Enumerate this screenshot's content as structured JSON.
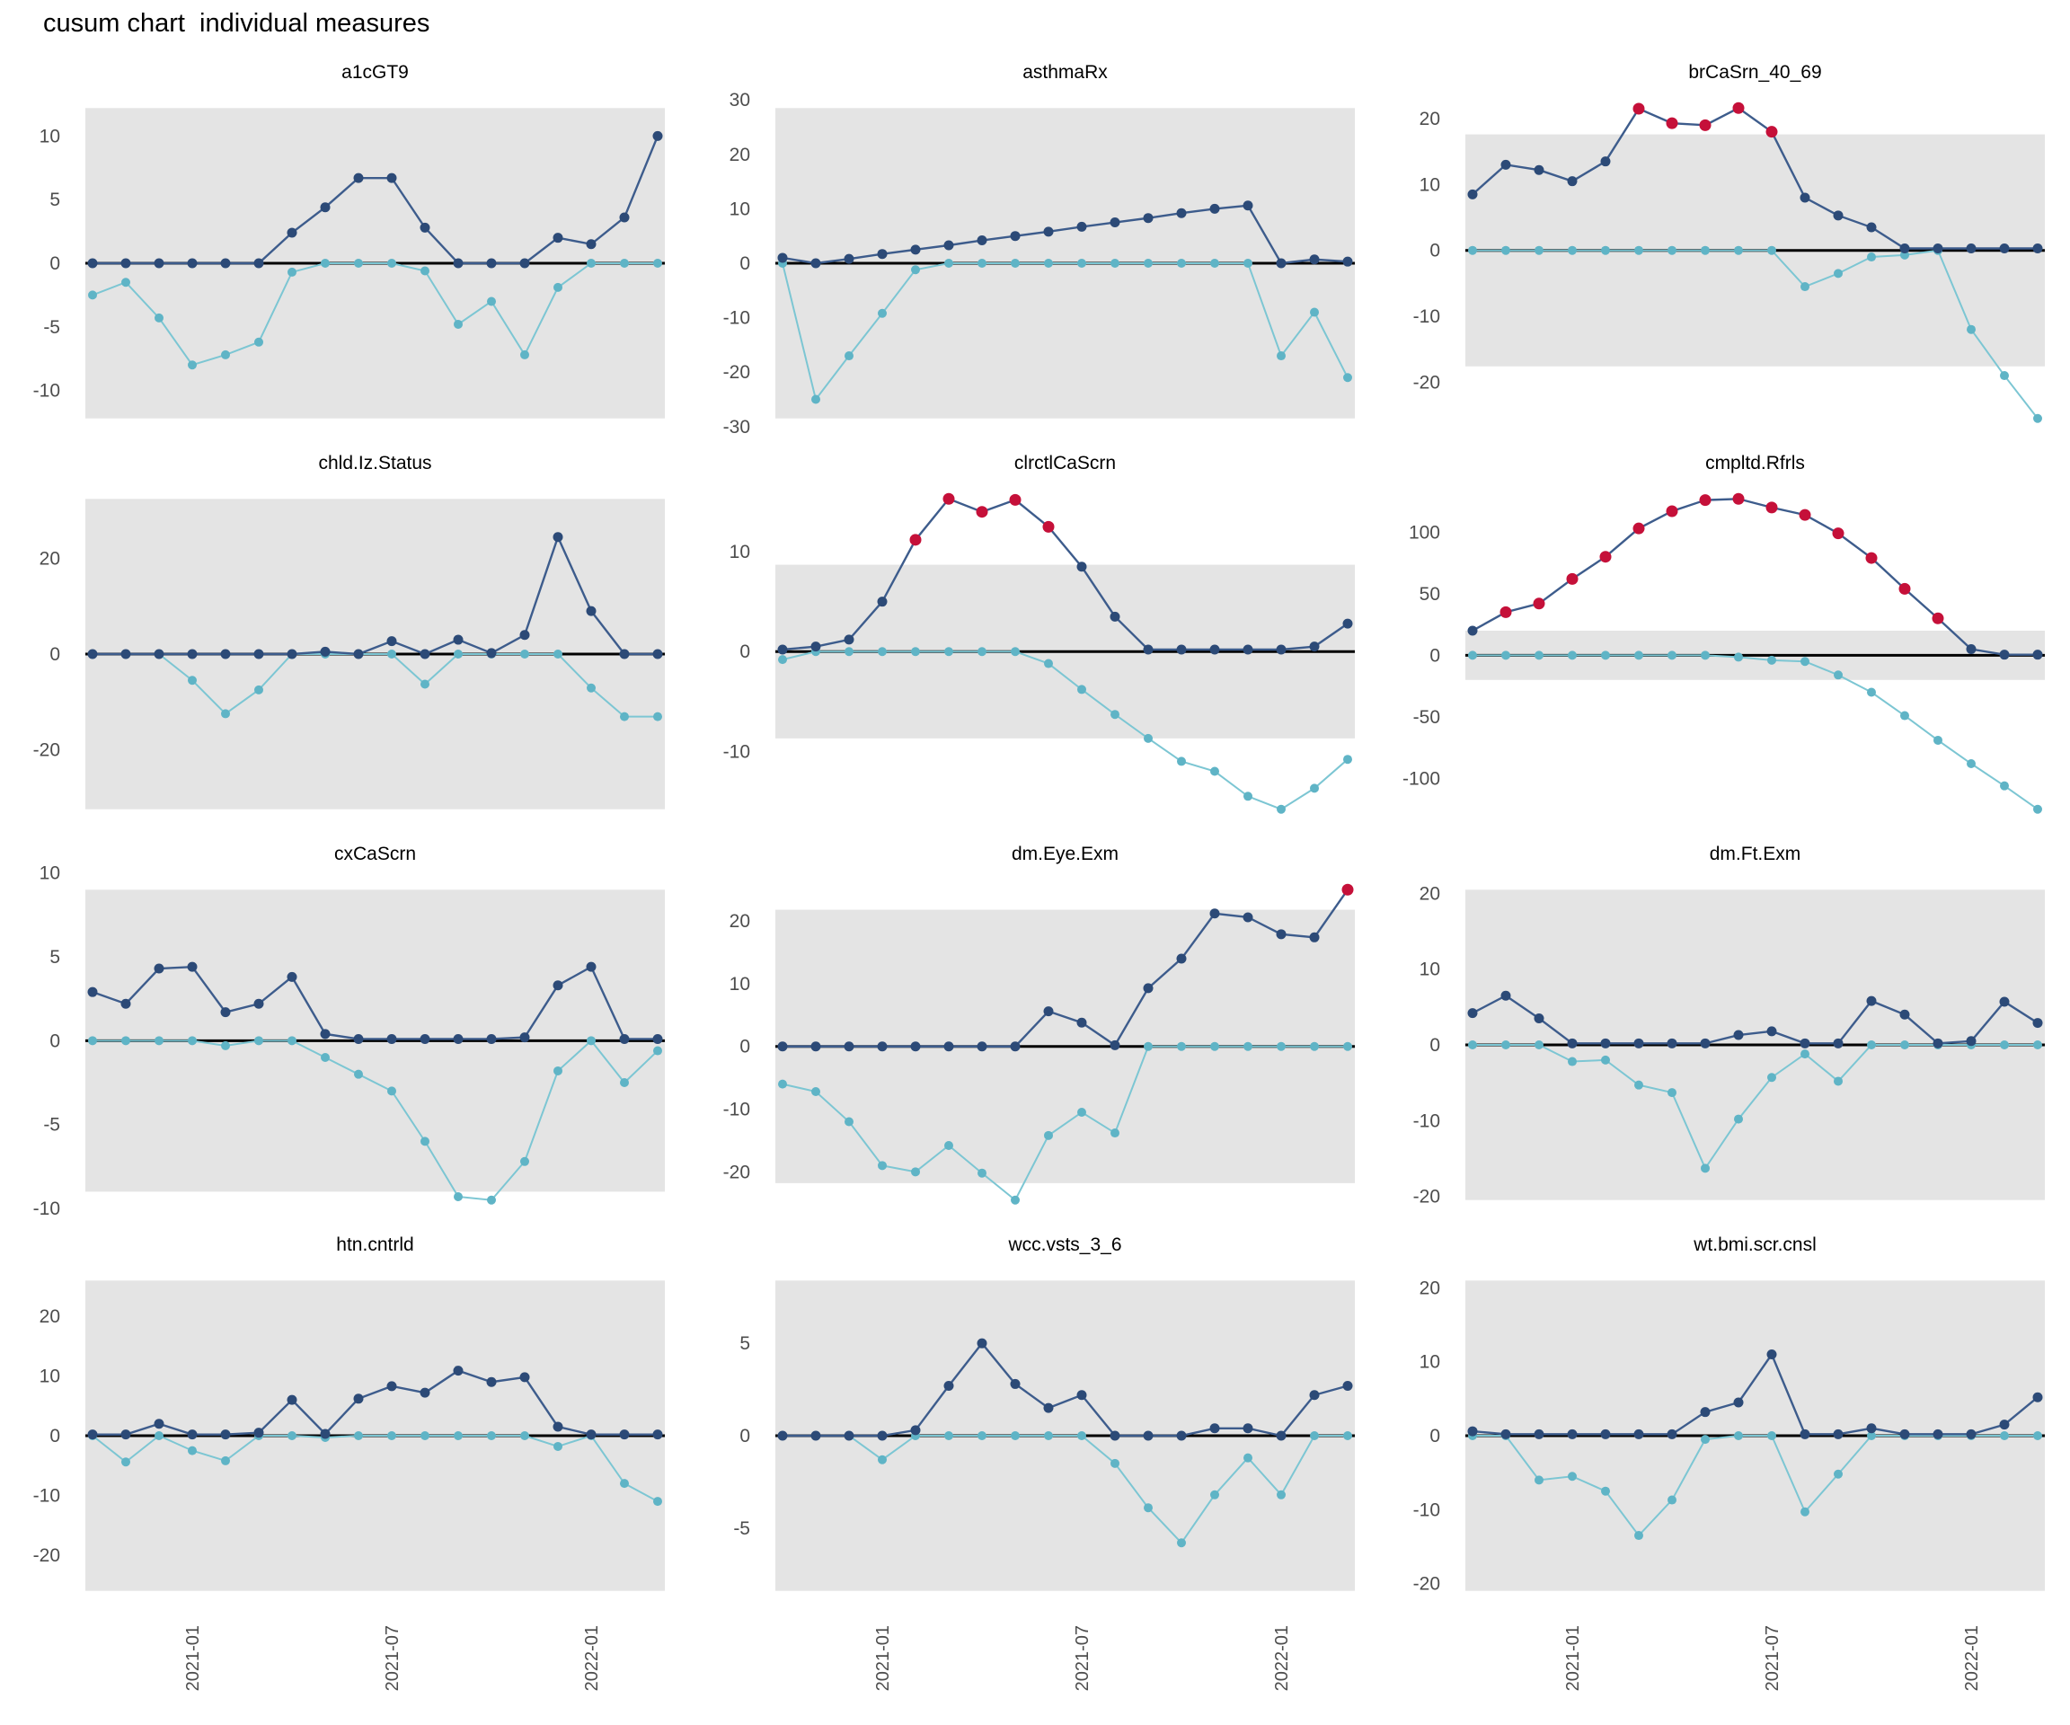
{
  "title": "cusum chart  individual measures",
  "colors": {
    "upper_point": "#2c4a77",
    "upper_line": "#3d5c8c",
    "lower_point": "#5fb4c6",
    "lower_line": "#7cc6d3",
    "signal_point": "#c51039",
    "band_fill": "#e4e4e4",
    "baseline": "#000000",
    "tick_label": "#4d4d4d",
    "panel_title": "#000000"
  },
  "chart_data": {
    "type": "line",
    "title": "cusum chart  individual measures",
    "subtitle": "",
    "grid": "off",
    "legend": "none",
    "x": {
      "n_points": 18,
      "tick_positions": [
        3,
        9,
        15
      ],
      "tick_labels": [
        "2021-01",
        "2021-07",
        "2022-01"
      ]
    },
    "panels": [
      {
        "title": "a1cGT9",
        "y_ticks": [
          10,
          5,
          0,
          -5,
          -10
        ],
        "control_limit": 12.2,
        "signals": [],
        "series": [
          {
            "name": "cusum-upper",
            "values": [
              0,
              0,
              0,
              0,
              0,
              0,
              2.4,
              4.4,
              6.7,
              6.7,
              2.8,
              0,
              0,
              0,
              2,
              1.5,
              3.6,
              10
            ]
          },
          {
            "name": "cusum-lower",
            "values": [
              -2.5,
              -1.5,
              -4.3,
              -8,
              -7.2,
              -6.2,
              -0.7,
              0,
              0,
              0,
              -0.6,
              -4.8,
              -3,
              -7.2,
              -1.9,
              0,
              0,
              0
            ]
          }
        ]
      },
      {
        "title": "asthmaRx",
        "y_ticks": [
          30,
          20,
          10,
          0,
          -10,
          -20,
          -30
        ],
        "control_limit": 28.5,
        "signals": [],
        "series": [
          {
            "name": "cusum-upper",
            "values": [
              1,
              0,
              0.8,
              1.7,
              2.5,
              3.3,
              4.2,
              5,
              5.8,
              6.7,
              7.5,
              8.3,
              9.2,
              10,
              10.6,
              0,
              0.7,
              0.3
            ]
          },
          {
            "name": "cusum-lower",
            "values": [
              0,
              -25,
              -17,
              -9.2,
              -1.2,
              0,
              0,
              0,
              0,
              0,
              0,
              0,
              0,
              0,
              0,
              -17,
              -9,
              -21
            ]
          }
        ]
      },
      {
        "title": "brCaSrn_40_69",
        "y_ticks": [
          20,
          10,
          0,
          -10,
          -20
        ],
        "control_limit": 17.6,
        "signals": [
          5,
          6,
          7,
          8,
          9
        ],
        "series": [
          {
            "name": "cusum-upper",
            "values": [
              8.5,
              13,
              12.2,
              10.5,
              13.5,
              21.5,
              19.3,
              19,
              21.6,
              18,
              8,
              5.3,
              3.5,
              0.3,
              0.3,
              0.3,
              0.3,
              0.3
            ]
          },
          {
            "name": "cusum-lower",
            "values": [
              0,
              0,
              0,
              0,
              0,
              0,
              0,
              0,
              0,
              0,
              -5.5,
              -3.5,
              -1,
              -0.7,
              0,
              -12,
              -19,
              -25.5
            ]
          }
        ]
      },
      {
        "title": "chld.Iz.Status",
        "y_ticks": [
          20,
          0,
          -20
        ],
        "control_limit": 32.5,
        "signals": [],
        "series": [
          {
            "name": "cusum-upper",
            "values": [
              0,
              0,
              0,
              0,
              0,
              0,
              0,
              0.5,
              0,
              2.7,
              0,
              3,
              0.2,
              4,
              24.5,
              9,
              0,
              0
            ]
          },
          {
            "name": "cusum-lower",
            "values": [
              0,
              0,
              0,
              -5.5,
              -12.5,
              -7.5,
              0,
              0,
              0,
              0,
              -6.3,
              0,
              0,
              0,
              0,
              -7.1,
              -13.1,
              -13.1
            ]
          }
        ]
      },
      {
        "title": "clrctlCaScrn",
        "y_ticks": [
          10,
          0,
          -10
        ],
        "control_limit": 8.7,
        "signals": [
          4,
          5,
          6,
          7,
          8
        ],
        "series": [
          {
            "name": "cusum-upper",
            "values": [
              0.2,
              0.5,
              1.2,
              5,
              11.2,
              15.3,
              14,
              15.2,
              12.5,
              8.5,
              3.5,
              0.2,
              0.2,
              0.2,
              0.2,
              0.2,
              0.5,
              2.8
            ]
          },
          {
            "name": "cusum-lower",
            "values": [
              -0.8,
              0,
              0,
              0,
              0,
              0,
              0,
              0,
              -1.2,
              -3.8,
              -6.3,
              -8.7,
              -11,
              -12,
              -14.5,
              -15.8,
              -13.7,
              -10.8
            ]
          }
        ]
      },
      {
        "title": "cmpltd.Rfrls",
        "y_ticks": [
          100,
          50,
          0,
          -50,
          -100
        ],
        "control_limit": 20,
        "signals": [
          1,
          2,
          3,
          4,
          5,
          6,
          7,
          8,
          9,
          10,
          11,
          12,
          13,
          14
        ],
        "series": [
          {
            "name": "cusum-upper",
            "values": [
              20,
              35,
              42,
              62,
              80,
              103,
              117,
              126,
              127,
              120,
              114,
              99,
              79,
              54,
              30,
              5,
              0.5,
              0.5
            ]
          },
          {
            "name": "cusum-lower",
            "values": [
              0,
              0,
              0,
              0,
              0,
              0,
              0,
              0,
              -1.5,
              -4,
              -5,
              -16,
              -30,
              -49,
              -69,
              -88,
              -106,
              -125
            ]
          }
        ]
      },
      {
        "title": "cxCaScrn",
        "y_ticks": [
          10,
          5,
          0,
          -5,
          -10
        ],
        "control_limit": 9,
        "signals": [],
        "series": [
          {
            "name": "cusum-upper",
            "values": [
              2.9,
              2.2,
              4.3,
              4.4,
              1.7,
              2.2,
              3.8,
              0.4,
              0.1,
              0.1,
              0.1,
              0.1,
              0.1,
              0.2,
              3.3,
              4.4,
              0.1,
              0.1
            ]
          },
          {
            "name": "cusum-lower",
            "values": [
              0,
              0,
              0,
              0,
              -0.3,
              0,
              0,
              -1,
              -2,
              -3,
              -6,
              -9.3,
              -9.5,
              -7.2,
              -1.8,
              0,
              -2.5,
              -0.6
            ]
          }
        ]
      },
      {
        "title": "dm.Eye.Exm",
        "y_ticks": [
          20,
          10,
          0,
          -10,
          -20
        ],
        "control_limit": 21.8,
        "signals": [
          17
        ],
        "series": [
          {
            "name": "cusum-upper",
            "values": [
              0,
              0,
              0,
              0,
              0,
              0,
              0,
              0,
              5.6,
              3.8,
              0.2,
              9.3,
              14,
              21.2,
              20.6,
              17.9,
              17.4,
              25
            ]
          },
          {
            "name": "cusum-lower",
            "values": [
              -6,
              -7.2,
              -12,
              -19,
              -20,
              -15.8,
              -20.2,
              -24.5,
              -14.2,
              -10.5,
              -13.8,
              0,
              0,
              0,
              0,
              0,
              0,
              0
            ]
          }
        ]
      },
      {
        "title": "dm.Ft.Exm",
        "y_ticks": [
          20,
          10,
          0,
          -10,
          -20
        ],
        "control_limit": 20.5,
        "signals": [],
        "series": [
          {
            "name": "cusum-upper",
            "values": [
              4.2,
              6.5,
              3.5,
              0.2,
              0.2,
              0.2,
              0.2,
              0.2,
              1.3,
              1.8,
              0.2,
              0.2,
              5.8,
              4,
              0.2,
              0.5,
              5.7,
              2.9
            ]
          },
          {
            "name": "cusum-lower",
            "values": [
              0,
              0,
              0,
              -2.2,
              -2,
              -5.3,
              -6.3,
              -16.3,
              -9.8,
              -4.3,
              -1.2,
              -4.8,
              0,
              0,
              0,
              0,
              0,
              0
            ]
          }
        ]
      },
      {
        "title": "htn.cntrld",
        "y_ticks": [
          20,
          10,
          0,
          -10,
          -20
        ],
        "control_limit": 26,
        "signals": [],
        "series": [
          {
            "name": "cusum-upper",
            "values": [
              0.2,
              0.2,
              2,
              0.2,
              0.2,
              0.5,
              6,
              0.3,
              6.2,
              8.3,
              7.2,
              10.9,
              9,
              9.8,
              1.5,
              0.2,
              0.2,
              0.2
            ]
          },
          {
            "name": "cusum-lower",
            "values": [
              0,
              -4.4,
              0,
              -2.5,
              -4.2,
              0,
              0,
              -0.3,
              0,
              0,
              0,
              0,
              0,
              0,
              -1.8,
              0,
              -8,
              -11
            ]
          }
        ]
      },
      {
        "title": "wcc.vsts_3_6",
        "y_ticks": [
          5,
          0,
          -5
        ],
        "control_limit": 8.4,
        "signals": [],
        "series": [
          {
            "name": "cusum-upper",
            "values": [
              0,
              0,
              0,
              0,
              0.3,
              2.7,
              5,
              2.8,
              1.5,
              2.2,
              0,
              0,
              0,
              0.4,
              0.4,
              0,
              2.2,
              2.7
            ]
          },
          {
            "name": "cusum-lower",
            "values": [
              0,
              0,
              0,
              -1.3,
              0,
              0,
              0,
              0,
              0,
              0,
              -1.5,
              -3.9,
              -5.8,
              -3.2,
              -1.2,
              -3.2,
              0,
              0
            ]
          }
        ]
      },
      {
        "title": "wt.bmi.scr.cnsl",
        "y_ticks": [
          20,
          10,
          0,
          -10,
          -20
        ],
        "control_limit": 21,
        "signals": [],
        "series": [
          {
            "name": "cusum-upper",
            "values": [
              0.6,
              0.2,
              0.2,
              0.2,
              0.2,
              0.2,
              0.2,
              3.2,
              4.5,
              11,
              0.2,
              0.2,
              1,
              0.2,
              0.2,
              0.2,
              1.5,
              5.2
            ]
          },
          {
            "name": "cusum-lower",
            "values": [
              0,
              0,
              -6,
              -5.5,
              -7.5,
              -13.5,
              -8.7,
              -0.5,
              0,
              0,
              -10.3,
              -5.2,
              0,
              0,
              0,
              0,
              0,
              0
            ]
          }
        ]
      }
    ]
  }
}
